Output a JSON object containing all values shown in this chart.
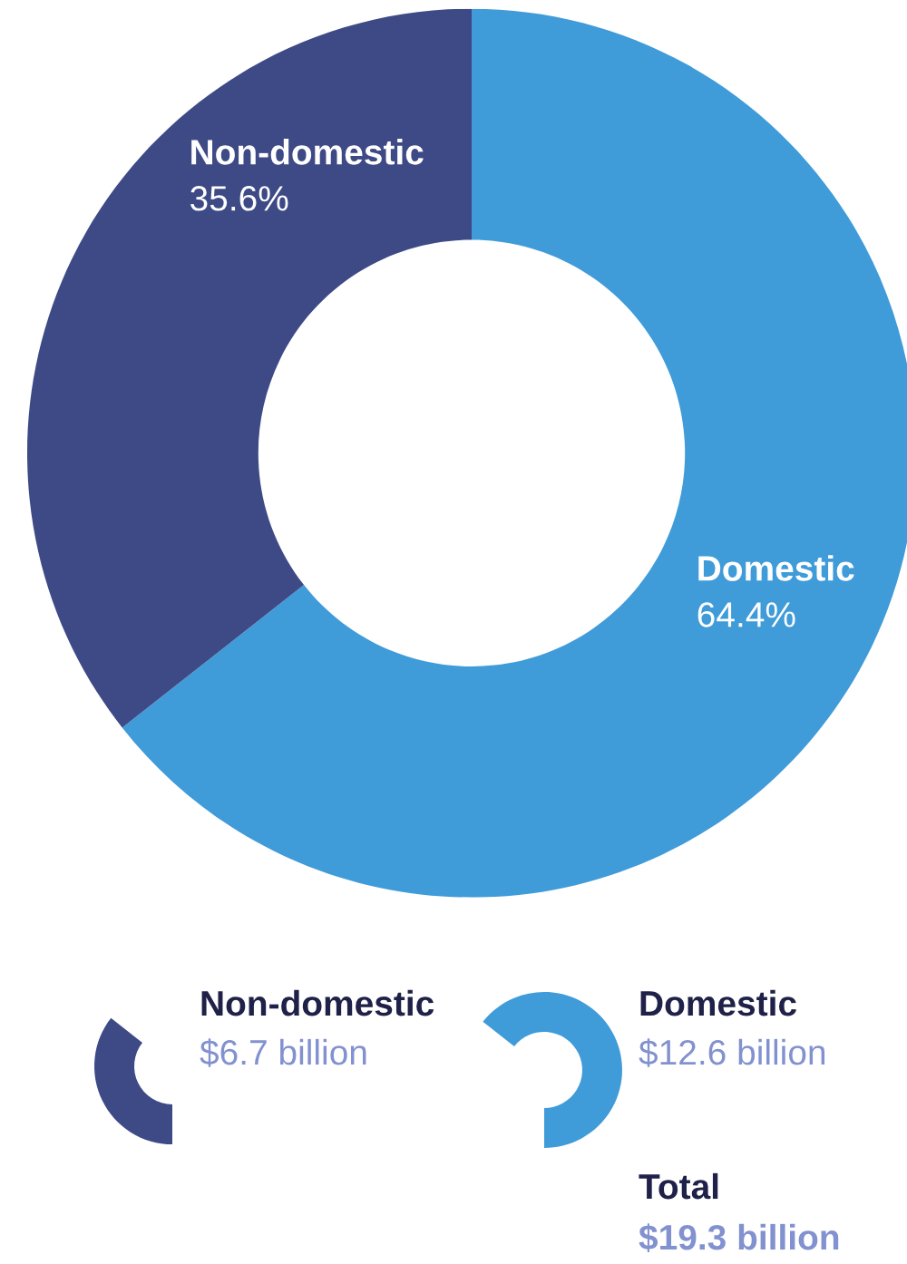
{
  "chart_data": {
    "type": "donut",
    "categories": [
      "Domestic",
      "Non-domestic"
    ],
    "values": [
      64.4,
      35.6
    ],
    "value_labels": [
      "64.4%",
      "35.6%"
    ],
    "colors": [
      "#409bd9",
      "#3e4a86"
    ],
    "annotations": [
      "$12.6 billion",
      "$6.7 billion",
      "Total",
      "$19.3 billion"
    ]
  }
}
